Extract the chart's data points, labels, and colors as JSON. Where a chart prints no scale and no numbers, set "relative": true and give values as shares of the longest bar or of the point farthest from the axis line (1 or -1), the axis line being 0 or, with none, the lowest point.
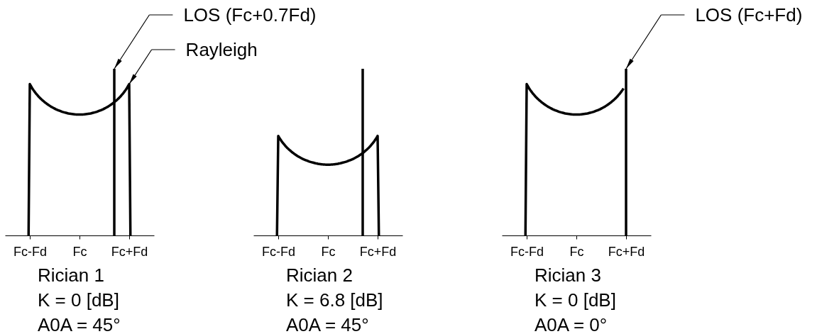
{
  "chart_data": [
    {
      "type": "line",
      "title": "Rician 1",
      "relative": true,
      "legend": "top right",
      "categories": [
        null,
        null,
        null,
        null,
        null,
        null,
        null,
        null,
        null,
        null,
        null,
        null,
        null,
        null,
        null,
        null,
        null,
        null,
        null,
        null,
        "Fc-Fd",
        null,
        null,
        null,
        null,
        null,
        null,
        null,
        null,
        null,
        null,
        null,
        null,
        null,
        null,
        null,
        null,
        null,
        null,
        null,
        null,
        null,
        null,
        null,
        null,
        null,
        null,
        null,
        null,
        null,
        null,
        null,
        null,
        null,
        null,
        null,
        null,
        null,
        null,
        null,
        "Fc",
        null,
        null,
        null,
        null,
        null,
        null,
        null,
        null,
        null,
        null,
        null,
        null,
        null,
        null,
        null,
        null,
        null,
        null,
        null,
        null,
        null,
        null,
        null,
        null,
        null,
        null,
        null,
        null,
        null,
        null,
        null,
        null,
        null,
        null,
        null,
        null,
        null,
        null,
        null,
        "Fc+Fd",
        null,
        null,
        null,
        null,
        null,
        null,
        null,
        null,
        null,
        null,
        null,
        null,
        null,
        null,
        null,
        null,
        null,
        null,
        null,
        null
      ],
      "annotations": [
        "K = 0 [dB]",
        "A0A = 45°"
      ],
      "series": [
        {
          "name": "Rayleigh",
          "color": "#000000",
          "values": [
            null,
            null,
            null,
            null,
            null,
            null,
            null,
            null,
            null,
            null,
            null,
            null,
            null,
            null,
            null,
            null,
            null,
            null,
            null,
            0,
            0.908,
            0.895,
            0.882,
            0.871,
            0.861,
            0.851,
            0.843,
            0.834,
            0.826,
            0.819,
            0.812,
            0.806,
            0.799,
            0.794,
            0.788,
            0.783,
            0.778,
            0.773,
            0.769,
            0.765,
            0.761,
            0.757,
            0.754,
            0.751,
            0.748,
            0.745,
            0.742,
            0.74,
            0.738,
            0.736,
            0.734,
            0.732,
            0.731,
            0.73,
            0.729,
            0.728,
            0.727,
            0.726,
            0.726,
            0.726,
            0.726,
            0.726,
            0.726,
            0.726,
            0.727,
            0.728,
            0.729,
            0.73,
            0.731,
            0.732,
            0.734,
            0.736,
            0.738,
            0.74,
            0.742,
            0.745,
            0.748,
            0.751,
            0.754,
            0.757,
            0.761,
            0.765,
            0.769,
            0.773,
            0.778,
            0.783,
            0.788,
            0.794,
            0.799,
            0.806,
            0.812,
            0.819,
            0.826,
            0.834,
            0.843,
            0.851,
            0.861,
            0.871,
            0.882,
            0.895,
            0.908,
            0,
            null,
            null,
            null,
            null,
            null,
            null,
            null,
            null,
            null,
            null,
            null,
            null,
            null,
            null,
            null,
            null,
            null,
            null,
            null
          ]
        },
        {
          "name": "LOS (Fc+0.7Fd)",
          "type": "bar",
          "color": "#000000",
          "values": [
            null,
            null,
            null,
            null,
            null,
            null,
            null,
            null,
            null,
            null,
            null,
            null,
            null,
            null,
            null,
            null,
            null,
            null,
            null,
            null,
            null,
            null,
            null,
            null,
            null,
            null,
            null,
            null,
            null,
            null,
            null,
            null,
            null,
            null,
            null,
            null,
            null,
            null,
            null,
            null,
            null,
            null,
            null,
            null,
            null,
            null,
            null,
            null,
            null,
            null,
            null,
            null,
            null,
            null,
            null,
            null,
            null,
            null,
            null,
            null,
            null,
            null,
            null,
            null,
            null,
            null,
            null,
            null,
            null,
            null,
            null,
            null,
            null,
            null,
            null,
            null,
            null,
            null,
            null,
            null,
            null,
            null,
            null,
            null,
            null,
            null,
            null,
            null,
            1,
            null,
            null,
            null,
            null,
            null,
            null,
            null,
            null,
            null,
            null,
            null,
            null,
            null,
            null,
            null,
            null,
            null,
            null,
            null,
            null,
            null,
            null,
            null,
            null,
            null,
            null,
            null,
            null,
            null,
            null,
            null,
            null
          ]
        }
      ]
    },
    {
      "type": "line",
      "title": "Rician 2",
      "relative": true,
      "categories": [
        null,
        null,
        null,
        null,
        null,
        null,
        null,
        null,
        null,
        null,
        null,
        null,
        null,
        null,
        null,
        null,
        null,
        null,
        null,
        null,
        "Fc-Fd",
        null,
        null,
        null,
        null,
        null,
        null,
        null,
        null,
        null,
        null,
        null,
        null,
        null,
        null,
        null,
        null,
        null,
        null,
        null,
        null,
        null,
        null,
        null,
        null,
        null,
        null,
        null,
        null,
        null,
        null,
        null,
        null,
        null,
        null,
        null,
        null,
        null,
        null,
        null,
        "Fc",
        null,
        null,
        null,
        null,
        null,
        null,
        null,
        null,
        null,
        null,
        null,
        null,
        null,
        null,
        null,
        null,
        null,
        null,
        null,
        null,
        null,
        null,
        null,
        null,
        null,
        null,
        null,
        null,
        null,
        null,
        null,
        null,
        null,
        null,
        null,
        null,
        null,
        null,
        null,
        "Fc+Fd",
        null,
        null,
        null,
        null,
        null,
        null,
        null,
        null,
        null,
        null,
        null,
        null,
        null,
        null,
        null,
        null,
        null,
        null,
        null,
        null
      ],
      "annotations": [
        "K = 6.8 [dB]",
        "A0A = 45°"
      ],
      "series": [
        {
          "color": "#000000",
          "values": [
            null,
            null,
            null,
            null,
            null,
            null,
            null,
            null,
            null,
            null,
            null,
            null,
            null,
            null,
            null,
            null,
            null,
            null,
            null,
            0,
            0.597,
            0.584,
            0.573,
            0.562,
            0.553,
            0.544,
            0.535,
            0.527,
            0.52,
            0.513,
            0.507,
            0.5,
            0.495,
            0.489,
            0.484,
            0.479,
            0.474,
            0.47,
            0.466,
            0.462,
            0.458,
            0.455,
            0.452,
            0.449,
            0.446,
            0.443,
            0.441,
            0.439,
            0.437,
            0.435,
            0.433,
            0.432,
            0.43,
            0.429,
            0.428,
            0.427,
            0.426,
            0.426,
            0.425,
            0.425,
            0.425,
            0.425,
            0.425,
            0.426,
            0.426,
            0.427,
            0.428,
            0.429,
            0.43,
            0.432,
            0.433,
            0.435,
            0.437,
            0.439,
            0.441,
            0.443,
            0.446,
            0.449,
            0.452,
            0.455,
            0.458,
            0.462,
            0.466,
            0.47,
            0.474,
            0.479,
            0.484,
            0.489,
            0.495,
            0.5,
            0.507,
            0.513,
            0.52,
            0.527,
            0.535,
            0.544,
            0.553,
            0.562,
            0.573,
            0.584,
            0.597,
            0,
            null,
            null,
            null,
            null,
            null,
            null,
            null,
            null,
            null,
            null,
            null,
            null,
            null,
            null,
            null,
            null,
            null,
            null,
            null
          ]
        },
        {
          "type": "bar",
          "color": "#000000",
          "values": [
            null,
            null,
            null,
            null,
            null,
            null,
            null,
            null,
            null,
            null,
            null,
            null,
            null,
            null,
            null,
            null,
            null,
            null,
            null,
            null,
            null,
            null,
            null,
            null,
            null,
            null,
            null,
            null,
            null,
            null,
            null,
            null,
            null,
            null,
            null,
            null,
            null,
            null,
            null,
            null,
            null,
            null,
            null,
            null,
            null,
            null,
            null,
            null,
            null,
            null,
            null,
            null,
            null,
            null,
            null,
            null,
            null,
            null,
            null,
            null,
            null,
            null,
            null,
            null,
            null,
            null,
            null,
            null,
            null,
            null,
            null,
            null,
            null,
            null,
            null,
            null,
            null,
            null,
            null,
            null,
            null,
            null,
            null,
            null,
            null,
            null,
            null,
            null,
            1,
            null,
            null,
            null,
            null,
            null,
            null,
            null,
            null,
            null,
            null,
            null,
            null,
            null,
            null,
            null,
            null,
            null,
            null,
            null,
            null,
            null,
            null,
            null,
            null,
            null,
            null,
            null,
            null,
            null,
            null,
            null,
            null
          ]
        }
      ]
    },
    {
      "type": "line",
      "title": "Rician 3",
      "relative": true,
      "legend": "top right",
      "categories": [
        null,
        null,
        null,
        null,
        null,
        null,
        null,
        null,
        null,
        null,
        null,
        null,
        null,
        null,
        null,
        null,
        null,
        null,
        null,
        null,
        "Fc-Fd",
        null,
        null,
        null,
        null,
        null,
        null,
        null,
        null,
        null,
        null,
        null,
        null,
        null,
        null,
        null,
        null,
        null,
        null,
        null,
        null,
        null,
        null,
        null,
        null,
        null,
        null,
        null,
        null,
        null,
        null,
        null,
        null,
        null,
        null,
        null,
        null,
        null,
        null,
        null,
        "Fc",
        null,
        null,
        null,
        null,
        null,
        null,
        null,
        null,
        null,
        null,
        null,
        null,
        null,
        null,
        null,
        null,
        null,
        null,
        null,
        null,
        null,
        null,
        null,
        null,
        null,
        null,
        null,
        null,
        null,
        null,
        null,
        null,
        null,
        null,
        null,
        null,
        null,
        null,
        null,
        "Fc+Fd",
        null,
        null,
        null,
        null,
        null,
        null,
        null,
        null,
        null,
        null,
        null,
        null,
        null,
        null,
        null,
        null,
        null,
        null,
        null,
        null
      ],
      "annotations": [
        "K = 0 [dB]",
        "A0A = 0°"
      ],
      "series": [
        {
          "color": "#000000",
          "values": [
            null,
            null,
            null,
            null,
            null,
            null,
            null,
            null,
            null,
            null,
            null,
            null,
            null,
            null,
            null,
            null,
            null,
            null,
            null,
            0,
            0.908,
            0.895,
            0.882,
            0.871,
            0.861,
            0.851,
            0.843,
            0.834,
            0.826,
            0.819,
            0.812,
            0.806,
            0.799,
            0.794,
            0.788,
            0.783,
            0.778,
            0.773,
            0.769,
            0.765,
            0.761,
            0.757,
            0.754,
            0.751,
            0.748,
            0.745,
            0.742,
            0.74,
            0.738,
            0.736,
            0.734,
            0.732,
            0.731,
            0.73,
            0.729,
            0.728,
            0.727,
            0.726,
            0.726,
            0.726,
            0.726,
            0.726,
            0.726,
            0.726,
            0.727,
            0.728,
            0.729,
            0.73,
            0.731,
            0.732,
            0.734,
            0.736,
            0.738,
            0.74,
            0.742,
            0.745,
            0.748,
            0.751,
            0.754,
            0.757,
            0.761,
            0.765,
            0.769,
            0.773,
            0.778,
            0.783,
            0.788,
            0.794,
            0.799,
            0.806,
            0.812,
            0.819,
            0.826,
            0.834,
            0.843,
            0.851,
            0.861,
            0.871,
            0.882,
            null,
            null,
            null,
            null,
            null,
            null,
            null,
            null,
            null,
            null,
            null,
            null,
            null,
            null,
            null,
            null,
            null,
            null,
            null,
            null,
            null,
            null
          ]
        },
        {
          "name": "LOS (Fc+Fd)",
          "type": "bar",
          "color": "#000000",
          "values": [
            null,
            null,
            null,
            null,
            null,
            null,
            null,
            null,
            null,
            null,
            null,
            null,
            null,
            null,
            null,
            null,
            null,
            null,
            null,
            null,
            null,
            null,
            null,
            null,
            null,
            null,
            null,
            null,
            null,
            null,
            null,
            null,
            null,
            null,
            null,
            null,
            null,
            null,
            null,
            null,
            null,
            null,
            null,
            null,
            null,
            null,
            null,
            null,
            null,
            null,
            null,
            null,
            null,
            null,
            null,
            null,
            null,
            null,
            null,
            null,
            null,
            null,
            null,
            null,
            null,
            null,
            null,
            null,
            null,
            null,
            null,
            null,
            null,
            null,
            null,
            null,
            null,
            null,
            null,
            null,
            null,
            null,
            null,
            null,
            null,
            null,
            null,
            null,
            null,
            null,
            null,
            null,
            null,
            null,
            null,
            null,
            null,
            null,
            null,
            null,
            1,
            null,
            null,
            null,
            null,
            null,
            null,
            null,
            null,
            null,
            null,
            null,
            null,
            null,
            null,
            null,
            null,
            null,
            null,
            null,
            null
          ]
        }
      ]
    }
  ]
}
